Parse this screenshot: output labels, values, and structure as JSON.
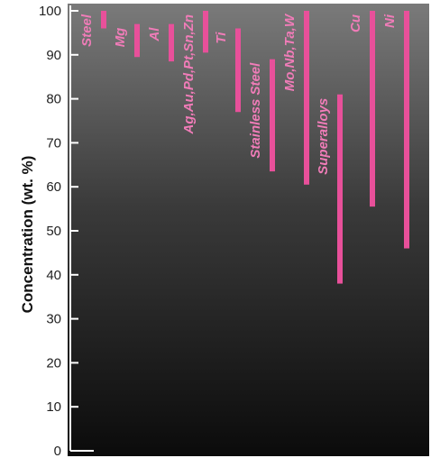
{
  "chart_data": {
    "type": "bar",
    "orientation": "floating-vertical-range",
    "xlabel": "",
    "ylabel": "Concentration (wt. %)",
    "ylim": [
      0,
      100
    ],
    "yticks": [
      0,
      10,
      20,
      30,
      40,
      50,
      60,
      70,
      80,
      90,
      100
    ],
    "grid": false,
    "background": "dark vertical gradient (dark gray top to black bottom)",
    "colors": {
      "bar": "#e8509a",
      "label": "#f07cb8",
      "axis": "#ffffff"
    },
    "categories": [
      "Steel",
      "Mg",
      "Al",
      "Ag,Au,Pd,Pt,Sn,Zn",
      "Ti",
      "Stainless Steel",
      "Mo,Nb,Ta,W",
      "Superalloys",
      "Cu",
      "Ni"
    ],
    "ranges": [
      [
        96,
        100
      ],
      [
        89.5,
        97
      ],
      [
        88.5,
        97
      ],
      [
        90.5,
        100
      ],
      [
        77,
        96
      ],
      [
        63.5,
        89
      ],
      [
        60.5,
        100
      ],
      [
        38,
        81
      ],
      [
        55.5,
        100
      ],
      [
        46,
        100
      ]
    ]
  }
}
